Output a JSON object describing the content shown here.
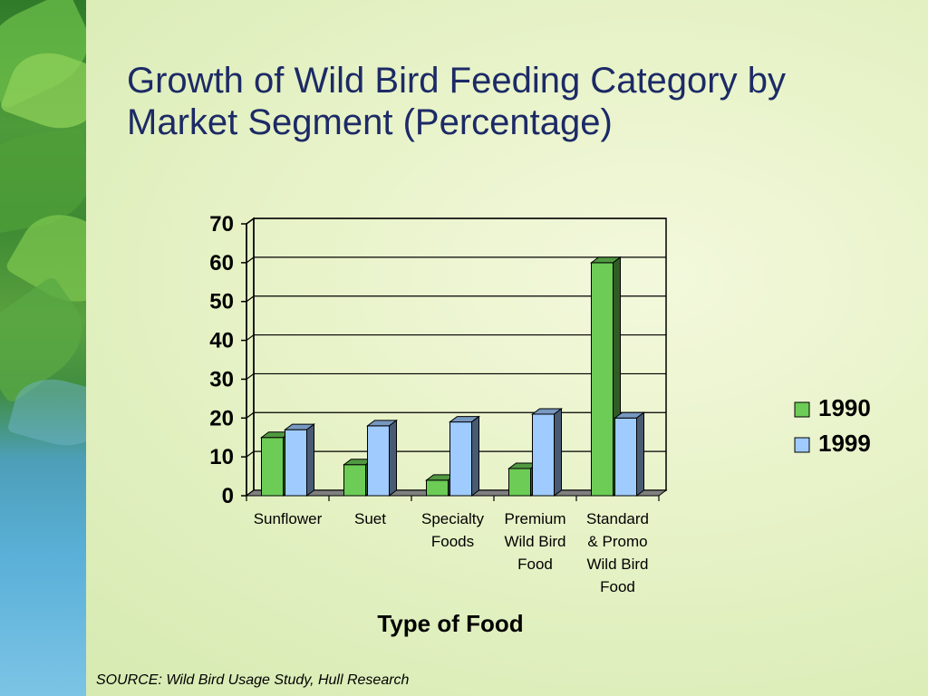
{
  "slide": {
    "title": "Growth of Wild Bird Feeding Category by Market Segment (Percentage)",
    "source": "SOURCE: Wild Bird Usage Study, Hull Research"
  },
  "chart_data": {
    "type": "bar",
    "title": "",
    "xlabel": "Type of Food",
    "ylabel": "",
    "ylim": [
      0,
      70
    ],
    "yticks": [
      0,
      10,
      20,
      30,
      40,
      50,
      60,
      70
    ],
    "grid": true,
    "legend_position": "right",
    "categories": [
      [
        "Sunflower"
      ],
      [
        "Suet"
      ],
      [
        "Specialty",
        "Foods"
      ],
      [
        "Premium",
        "Wild Bird",
        "Food"
      ],
      [
        "Standard",
        "& Promo",
        "Wild Bird",
        "Food"
      ]
    ],
    "series": [
      {
        "name": "1990",
        "color": "#6ccc56",
        "values": [
          15,
          8,
          4,
          7,
          60
        ]
      },
      {
        "name": "1999",
        "color": "#9fcbff",
        "values": [
          17,
          18,
          19,
          21,
          20
        ]
      }
    ]
  }
}
